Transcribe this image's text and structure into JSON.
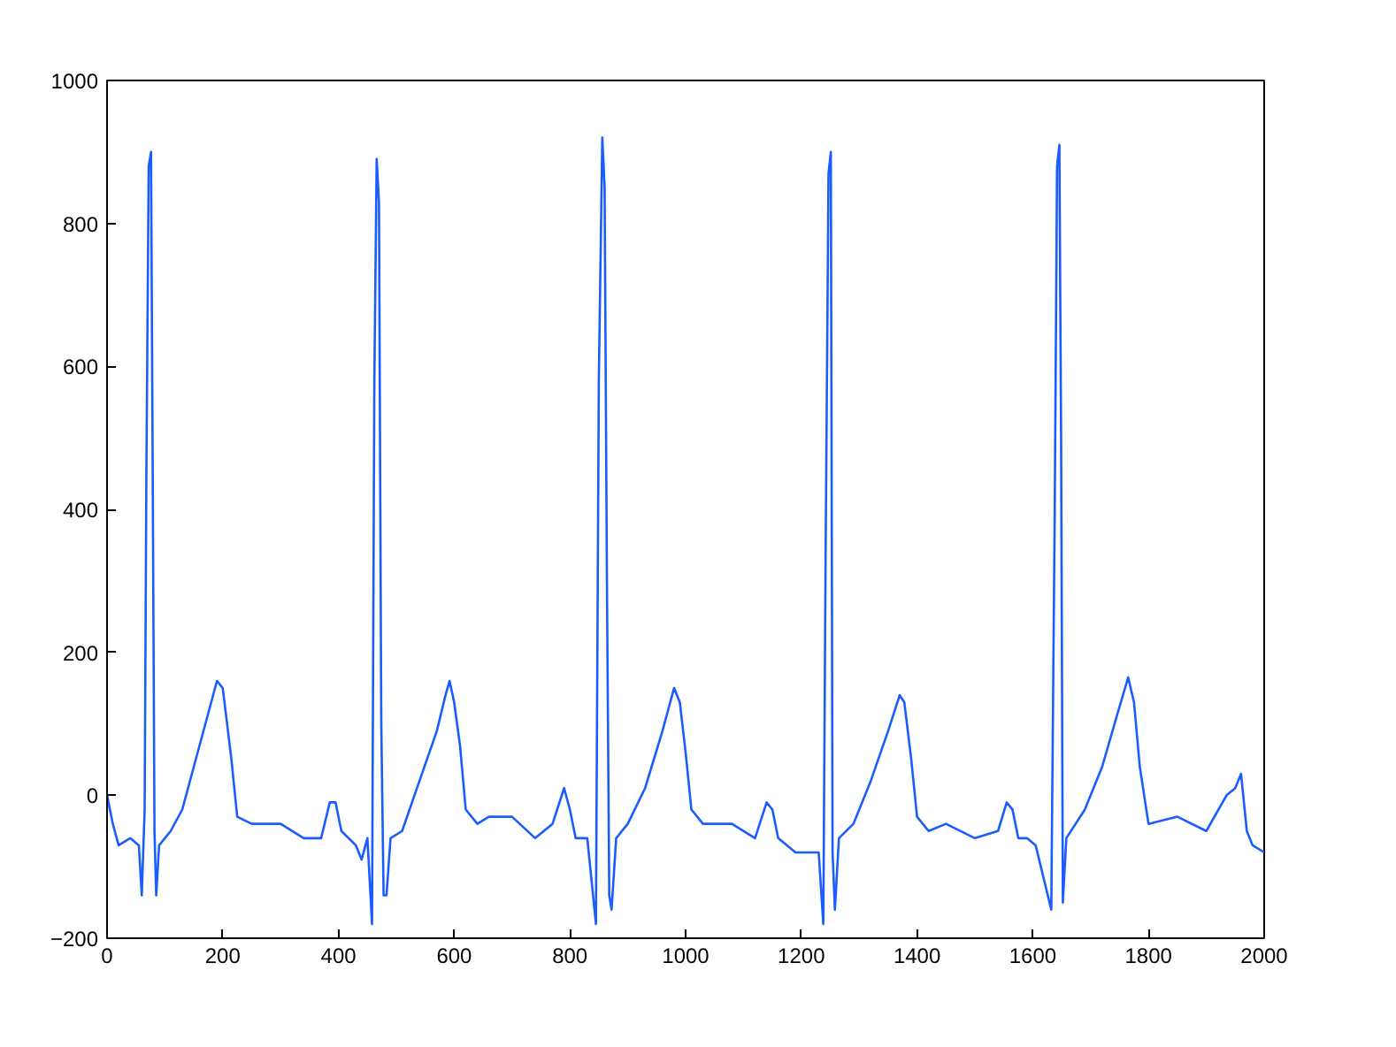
{
  "chart_data": {
    "type": "line",
    "x": [
      0,
      10,
      20,
      40,
      55,
      60,
      65,
      68,
      72,
      76,
      79,
      82,
      85,
      90,
      110,
      130,
      150,
      170,
      190,
      200,
      215,
      225,
      250,
      300,
      340,
      370,
      385,
      395,
      405,
      430,
      440,
      450,
      458,
      462,
      466,
      470,
      474,
      478,
      483,
      490,
      510,
      540,
      570,
      585,
      592,
      600,
      610,
      620,
      640,
      660,
      700,
      740,
      770,
      790,
      800,
      810,
      830,
      845,
      850,
      856,
      860,
      864,
      868,
      872,
      880,
      900,
      930,
      960,
      980,
      990,
      1000,
      1010,
      1030,
      1080,
      1120,
      1140,
      1150,
      1160,
      1190,
      1230,
      1238,
      1242,
      1247,
      1251,
      1254,
      1258,
      1265,
      1290,
      1320,
      1350,
      1370,
      1378,
      1390,
      1400,
      1420,
      1450,
      1500,
      1540,
      1555,
      1565,
      1575,
      1590,
      1605,
      1632,
      1638,
      1642,
      1646,
      1649,
      1652,
      1658,
      1690,
      1720,
      1745,
      1765,
      1775,
      1785,
      1800,
      1850,
      1900,
      1935,
      1950,
      1960,
      1970,
      1980,
      2000
    ],
    "series": [
      {
        "color": "#1a5cff",
        "values": [
          0,
          -40,
          -70,
          -60,
          -70,
          -140,
          -20,
          450,
          880,
          900,
          440,
          -50,
          -140,
          -70,
          -50,
          -20,
          40,
          100,
          160,
          150,
          50,
          -30,
          -40,
          -40,
          -60,
          -60,
          -10,
          -10,
          -50,
          -70,
          -90,
          -60,
          -180,
          580,
          890,
          830,
          100,
          -140,
          -140,
          -60,
          -50,
          20,
          90,
          140,
          160,
          130,
          70,
          -20,
          -40,
          -30,
          -30,
          -60,
          -40,
          10,
          -20,
          -60,
          -60,
          -180,
          580,
          920,
          850,
          300,
          -140,
          -160,
          -60,
          -40,
          10,
          90,
          150,
          130,
          60,
          -20,
          -40,
          -40,
          -60,
          -10,
          -20,
          -60,
          -80,
          -80,
          -180,
          340,
          870,
          900,
          -80,
          -160,
          -60,
          -40,
          20,
          90,
          140,
          130,
          50,
          -30,
          -50,
          -40,
          -60,
          -50,
          -10,
          -20,
          -60,
          -60,
          -70,
          -160,
          400,
          880,
          910,
          500,
          -150,
          -60,
          -20,
          40,
          110,
          165,
          130,
          40,
          -40,
          -30,
          -50,
          0,
          10,
          30,
          -50,
          -70,
          -80
        ]
      }
    ],
    "xlim": [
      0,
      2000
    ],
    "ylim": [
      -200,
      1000
    ],
    "xticks": [
      0,
      200,
      400,
      600,
      800,
      1000,
      1200,
      1400,
      1600,
      1800,
      2000
    ],
    "yticks": [
      -200,
      0,
      200,
      400,
      600,
      800,
      1000
    ],
    "grid": false,
    "marker": "none",
    "line_style": "solid"
  }
}
